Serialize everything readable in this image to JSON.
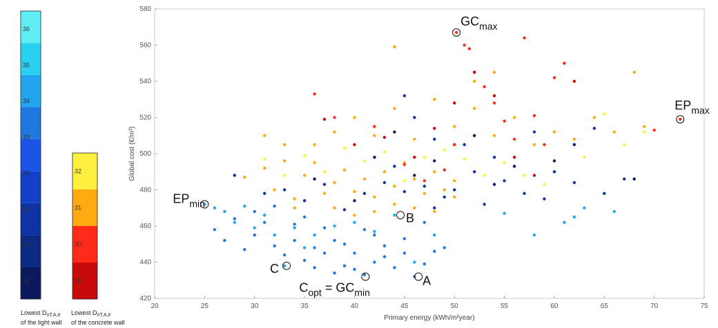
{
  "chart_data": [
    {
      "type": "colorbar",
      "label_main": "Lowest D",
      "label_sub": "nT,A,tr",
      "label_line2": "of the light wall",
      "ticks": [
        "29",
        "30",
        "31",
        "32",
        "33",
        "34",
        "35",
        "36"
      ],
      "colors": [
        "#0a1a5c",
        "#0c2a82",
        "#0d33a4",
        "#1240c8",
        "#1a55e8",
        "#1f78e0",
        "#23a4ee",
        "#2ad0f0",
        "#5eeef4"
      ]
    },
    {
      "type": "colorbar",
      "label_main": "Lowest D",
      "label_sub": "nT,A,tr",
      "label_line2": "of the concrete wall",
      "ticks": [
        "29",
        "30",
        "31",
        "32"
      ],
      "colors": [
        "#c80a0a",
        "#ff2a1a",
        "#ffaa10",
        "#fff040"
      ]
    },
    {
      "type": "scatter",
      "xlabel": "Primary energy (kWh/m²year)",
      "ylabel": "Global cost (€/m²)",
      "xlim": [
        20,
        75
      ],
      "ylim": [
        420,
        580
      ],
      "xticks": [
        20,
        25,
        30,
        35,
        40,
        45,
        50,
        55,
        60,
        65,
        70,
        75
      ],
      "yticks": [
        420,
        440,
        460,
        480,
        500,
        520,
        540,
        560,
        580
      ],
      "grid": false,
      "annotations": [
        {
          "main": "GC",
          "sub": "max",
          "x": 50.2,
          "y": 567
        },
        {
          "main": "EP",
          "sub": "max",
          "x": 72.6,
          "y": 519
        },
        {
          "main": "EP",
          "sub": "min",
          "x": 25.0,
          "y": 472
        },
        {
          "main": "B",
          "sub": "",
          "x": 44.6,
          "y": 466
        },
        {
          "main": "C",
          "sub": "",
          "x": 33.2,
          "y": 438
        },
        {
          "main": "C",
          "sub": "opt",
          "x": 41.1,
          "y": 432,
          "suffix": " = GC",
          "suffix_sub": "min"
        },
        {
          "main": "A",
          "sub": "",
          "x": 46.4,
          "y": 432
        }
      ],
      "series": [
        {
          "color": "#1f78e0",
          "points": [
            [
              26,
              458
            ],
            [
              27,
              452
            ],
            [
              28,
              464
            ],
            [
              29,
              447
            ],
            [
              30,
              455
            ],
            [
              31,
              462
            ],
            [
              32,
              449
            ],
            [
              33,
              444
            ],
            [
              34,
              452
            ],
            [
              35,
              441
            ],
            [
              36,
              437
            ],
            [
              37,
              445
            ],
            [
              38,
              434
            ],
            [
              39,
              438
            ],
            [
              40,
              436
            ],
            [
              41,
              433
            ],
            [
              42,
              440
            ],
            [
              43,
              443
            ],
            [
              44,
              437
            ],
            [
              45,
              445
            ],
            [
              46,
              432
            ],
            [
              47,
              439
            ],
            [
              48,
              446
            ],
            [
              34,
              461
            ],
            [
              36,
              448
            ],
            [
              38,
              452
            ],
            [
              40,
              445
            ],
            [
              42,
              455
            ],
            [
              30,
              468
            ],
            [
              32,
              471
            ],
            [
              35,
              465
            ],
            [
              37,
              459
            ],
            [
              39,
              450
            ],
            [
              41,
              458
            ],
            [
              43,
              449
            ],
            [
              45,
              453
            ],
            [
              47,
              462
            ],
            [
              49,
              448
            ]
          ]
        },
        {
          "color": "#23a4ee",
          "points": [
            [
              25,
              472
            ],
            [
              26,
              470
            ],
            [
              27,
              468
            ],
            [
              28,
              462
            ],
            [
              29,
              471
            ],
            [
              30,
              459
            ],
            [
              31,
              466
            ],
            [
              32,
              455
            ],
            [
              33,
              438
            ],
            [
              34,
              459
            ],
            [
              35,
              448
            ],
            [
              36,
              455
            ],
            [
              38,
              460
            ],
            [
              40,
              462
            ],
            [
              42,
              457
            ],
            [
              44,
              466
            ],
            [
              46,
              440
            ],
            [
              48,
              455
            ],
            [
              55,
              467
            ],
            [
              58,
              455
            ],
            [
              61,
              462
            ],
            [
              62,
              465
            ],
            [
              63,
              470
            ],
            [
              66,
              468
            ]
          ]
        },
        {
          "color": "#0d33a4",
          "points": [
            [
              28,
              488
            ],
            [
              31,
              478
            ],
            [
              33,
              480
            ],
            [
              35,
              474
            ],
            [
              37,
              483
            ],
            [
              39,
              469
            ],
            [
              41,
              478
            ],
            [
              43,
              484
            ],
            [
              44,
              493
            ],
            [
              45,
              479
            ],
            [
              47,
              482
            ],
            [
              48,
              470
            ],
            [
              49,
              476
            ],
            [
              50,
              480
            ],
            [
              52,
              490
            ],
            [
              53,
              472
            ],
            [
              55,
              485
            ],
            [
              57,
              478
            ],
            [
              59,
              475
            ],
            [
              60,
              490
            ],
            [
              62,
              484
            ],
            [
              65,
              478
            ],
            [
              67,
              486
            ],
            [
              64,
              514
            ],
            [
              58,
              512
            ],
            [
              54,
              498
            ],
            [
              51,
              505
            ],
            [
              48,
              508
            ],
            [
              46,
              520
            ],
            [
              45,
              532
            ]
          ]
        },
        {
          "color": "#0a1a5c",
          "points": [
            [
              36,
              486
            ],
            [
              40,
              474
            ],
            [
              42,
              498
            ],
            [
              44,
              512
            ],
            [
              46,
              488
            ],
            [
              48,
              496
            ],
            [
              50,
              505
            ],
            [
              52,
              510
            ],
            [
              54,
              483
            ],
            [
              56,
              493
            ],
            [
              60,
              496
            ],
            [
              62,
              505
            ],
            [
              68,
              486
            ]
          ]
        },
        {
          "color": "#ffaa10",
          "points": [
            [
              29,
              487
            ],
            [
              31,
              492
            ],
            [
              32,
              480
            ],
            [
              33,
              496
            ],
            [
              34,
              475
            ],
            [
              35,
              488
            ],
            [
              36,
              495
            ],
            [
              37,
              478
            ],
            [
              38,
              484
            ],
            [
              39,
              491
            ],
            [
              40,
              479
            ],
            [
              41,
              486
            ],
            [
              42,
              476
            ],
            [
              43,
              490
            ],
            [
              44,
              482
            ],
            [
              45,
              495
            ],
            [
              46,
              486
            ],
            [
              47,
              478
            ],
            [
              48,
              490
            ],
            [
              49,
              480
            ],
            [
              50,
              485
            ],
            [
              36,
              505
            ],
            [
              38,
              512
            ],
            [
              40,
              520
            ],
            [
              42,
              510
            ],
            [
              44,
              525
            ],
            [
              46,
              508
            ],
            [
              48,
              530
            ],
            [
              50,
              515
            ],
            [
              52,
              525
            ],
            [
              54,
              510
            ],
            [
              56,
              520
            ],
            [
              58,
              505
            ],
            [
              60,
              512
            ],
            [
              62,
              508
            ],
            [
              64,
              520
            ],
            [
              66,
              512
            ],
            [
              68,
              545
            ],
            [
              69,
              515
            ],
            [
              38,
              470
            ],
            [
              40,
              466
            ],
            [
              42,
              468
            ],
            [
              44,
              472
            ],
            [
              46,
              470
            ],
            [
              48,
              468
            ],
            [
              50,
              476
            ],
            [
              52,
              540
            ],
            [
              54,
              545
            ],
            [
              44,
              559
            ],
            [
              34,
              470
            ],
            [
              33,
              505
            ],
            [
              31,
              510
            ]
          ]
        },
        {
          "color": "#fff040",
          "points": [
            [
              31,
              497
            ],
            [
              33,
              488
            ],
            [
              35,
              499
            ],
            [
              37,
              490
            ],
            [
              39,
              503
            ],
            [
              41,
              496
            ],
            [
              43,
              501
            ],
            [
              45,
              485
            ],
            [
              47,
              498
            ],
            [
              49,
              502
            ],
            [
              51,
              497
            ],
            [
              53,
              488
            ],
            [
              55,
              495
            ],
            [
              57,
              488
            ],
            [
              59,
              483
            ],
            [
              63,
              498
            ],
            [
              65,
              522
            ],
            [
              67,
              505
            ],
            [
              69,
              512
            ]
          ]
        },
        {
          "color": "#ff2a1a",
          "points": [
            [
              36,
              533
            ],
            [
              38,
              520
            ],
            [
              42,
              515
            ],
            [
              45,
              494
            ],
            [
              47,
              485
            ],
            [
              49,
              491
            ],
            [
              50,
              505
            ],
            [
              51,
              560
            ],
            [
              51.5,
              558
            ],
            [
              52,
              545
            ],
            [
              53,
              537
            ],
            [
              54,
              528
            ],
            [
              55,
              518
            ],
            [
              56,
              508
            ],
            [
              57,
              564
            ],
            [
              58,
              521
            ],
            [
              59,
              505
            ],
            [
              60,
              542
            ],
            [
              61,
              550
            ],
            [
              70,
              513
            ],
            [
              50.2,
              567
            ],
            [
              72.6,
              519
            ]
          ]
        },
        {
          "color": "#c80a0a",
          "points": [
            [
              37,
              519
            ],
            [
              40,
              505
            ],
            [
              43,
              509
            ],
            [
              46,
              498
            ],
            [
              48,
              514
            ],
            [
              50,
              528
            ],
            [
              52,
              545
            ],
            [
              54,
              532
            ],
            [
              56,
              498
            ],
            [
              58,
              488
            ],
            [
              62,
              540
            ]
          ]
        }
      ]
    }
  ]
}
